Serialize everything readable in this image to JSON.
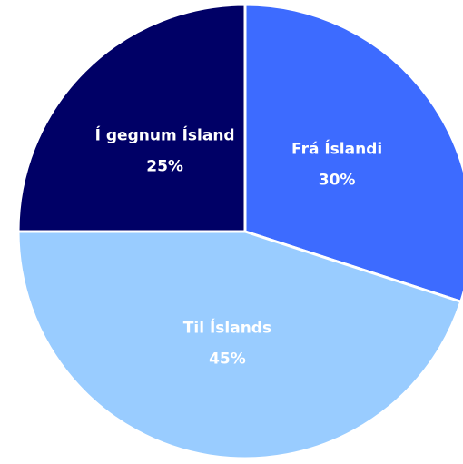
{
  "chart_data": {
    "type": "pie",
    "categories": [
      "Frá Íslandi",
      "Til Íslands",
      "Í gegnum Ísland"
    ],
    "values": [
      30,
      45,
      25
    ],
    "value_labels": [
      "30%",
      "45%",
      "25%"
    ],
    "colors": [
      "#3d6bff",
      "#99ccff",
      "#000066"
    ]
  }
}
